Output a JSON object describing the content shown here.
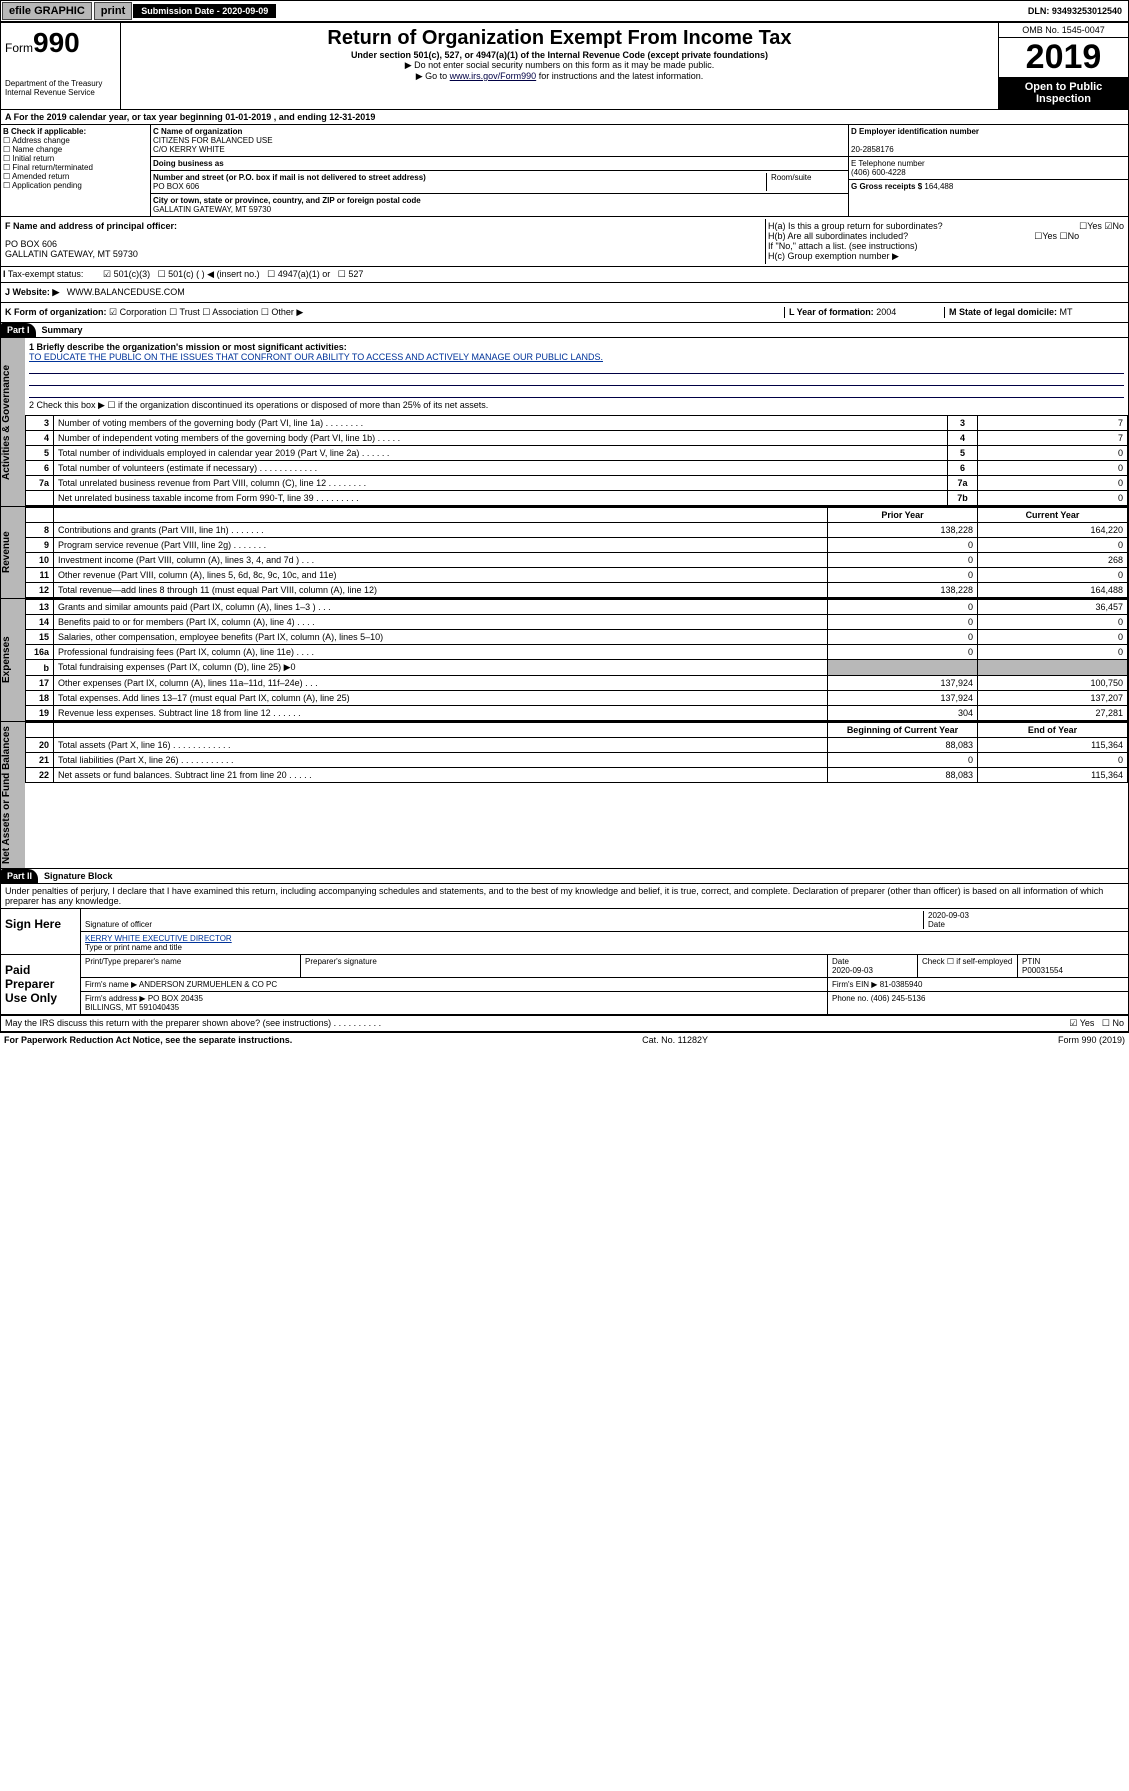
{
  "topbar": {
    "efile": "efile GRAPHIC",
    "print": "print",
    "sub_label": "Submission Date - 2020-09-09",
    "dln": "DLN: 93493253012540"
  },
  "header": {
    "form_prefix": "Form",
    "form_num": "990",
    "dept": "Department of the Treasury\nInternal Revenue Service",
    "title": "Return of Organization Exempt From Income Tax",
    "subtitle": "Under section 501(c), 527, or 4947(a)(1) of the Internal Revenue Code (except private foundations)",
    "note1": "▶ Do not enter social security numbers on this form as it may be made public.",
    "note2_pre": "▶ Go to ",
    "note2_link": "www.irs.gov/Form990",
    "note2_post": " for instructions and the latest information.",
    "omb": "OMB No. 1545-0047",
    "year": "2019",
    "inspect": "Open to Public Inspection"
  },
  "period": "A For the 2019 calendar year, or tax year beginning 01-01-2019   , and ending 12-31-2019",
  "section_b": {
    "label": "B Check if applicable:",
    "opts": [
      "Address change",
      "Name change",
      "Initial return",
      "Final return/terminated",
      "Amended return",
      "Application pending"
    ]
  },
  "section_c": {
    "name_label": "C Name of organization",
    "name": "CITIZENS FOR BALANCED USE",
    "care_of": "C/O KERRY WHITE",
    "dba_label": "Doing business as",
    "addr_label": "Number and street (or P.O. box if mail is not delivered to street address)",
    "room_label": "Room/suite",
    "addr": "PO BOX 606",
    "city_label": "City or town, state or province, country, and ZIP or foreign postal code",
    "city": "GALLATIN GATEWAY, MT  59730"
  },
  "section_d": {
    "ein_label": "D Employer identification number",
    "ein": "20-2858176",
    "phone_label": "E Telephone number",
    "phone": "(406) 600-4228",
    "gross_label": "G Gross receipts $",
    "gross": "164,488"
  },
  "section_f": {
    "label": "F Name and address of principal officer:",
    "addr1": "PO BOX 606",
    "addr2": "GALLATIN GATEWAY, MT  59730"
  },
  "section_h": {
    "ha": "H(a)  Is this a group return for subordinates?",
    "hb": "H(b)  Are all subordinates included?",
    "hb_note": "If \"No,\" attach a list. (see instructions)",
    "hc": "H(c)  Group exemption number ▶",
    "yes": "Yes",
    "no": "No"
  },
  "tax_status": {
    "label": "Tax-exempt status:",
    "o1": "501(c)(3)",
    "o2": "501(c) (   ) ◀ (insert no.)",
    "o3": "4947(a)(1) or",
    "o4": "527"
  },
  "website": {
    "label": "J   Website: ▶",
    "val": "WWW.BALANCEDUSE.COM"
  },
  "korg": {
    "label": "K Form of organization:",
    "corp": "Corporation",
    "trust": "Trust",
    "assoc": "Association",
    "other": "Other ▶",
    "l_label": "L Year of formation:",
    "l_val": "2004",
    "m_label": "M State of legal domicile:",
    "m_val": "MT"
  },
  "part1": {
    "tag": "Part I",
    "title": "Summary",
    "q1": "1  Briefly describe the organization's mission or most significant activities:",
    "mission": "TO EDUCATE THE PUBLIC ON THE ISSUES THAT CONFRONT OUR ABILITY TO ACCESS AND ACTIVELY MANAGE OUR PUBLIC LANDS.",
    "q2": "2  Check this box ▶ ☐ if the organization discontinued its operations or disposed of more than 25% of its net assets.",
    "rows_gov": [
      {
        "n": "3",
        "t": "Number of voting members of the governing body (Part VI, line 1a)  .   .   .   .   .   .   .   .",
        "c": "3",
        "v": "7"
      },
      {
        "n": "4",
        "t": "Number of independent voting members of the governing body (Part VI, line 1b)   .   .   .   .   .",
        "c": "4",
        "v": "7"
      },
      {
        "n": "5",
        "t": "Total number of individuals employed in calendar year 2019 (Part V, line 2a)  .   .   .   .   .   .",
        "c": "5",
        "v": "0"
      },
      {
        "n": "6",
        "t": "Total number of volunteers (estimate if necessary)   .   .   .   .   .   .   .   .   .   .   .   .",
        "c": "6",
        "v": "0"
      },
      {
        "n": "7a",
        "t": "Total unrelated business revenue from Part VIII, column (C), line 12   .   .   .   .   .   .   .   .",
        "c": "7a",
        "v": "0"
      },
      {
        "n": "",
        "t": "Net unrelated business taxable income from Form 990-T, line 39   .   .   .   .   .   .   .   .   .",
        "c": "7b",
        "v": "0"
      }
    ],
    "prior": "Prior Year",
    "current": "Current Year",
    "rows_rev": [
      {
        "n": "8",
        "t": "Contributions and grants (Part VIII, line 1h)   .   .   .   .   .   .   .",
        "p": "138,228",
        "c": "164,220"
      },
      {
        "n": "9",
        "t": "Program service revenue (Part VIII, line 2g)   .   .   .   .   .   .   .",
        "p": "0",
        "c": "0"
      },
      {
        "n": "10",
        "t": "Investment income (Part VIII, column (A), lines 3, 4, and 7d )   .   .   .",
        "p": "0",
        "c": "268"
      },
      {
        "n": "11",
        "t": "Other revenue (Part VIII, column (A), lines 5, 6d, 8c, 9c, 10c, and 11e)",
        "p": "0",
        "c": "0"
      },
      {
        "n": "12",
        "t": "Total revenue—add lines 8 through 11 (must equal Part VIII, column (A), line 12)",
        "p": "138,228",
        "c": "164,488"
      }
    ],
    "rows_exp": [
      {
        "n": "13",
        "t": "Grants and similar amounts paid (Part IX, column (A), lines 1–3 )   .   .   .",
        "p": "0",
        "c": "36,457"
      },
      {
        "n": "14",
        "t": "Benefits paid to or for members (Part IX, column (A), line 4)   .   .   .   .",
        "p": "0",
        "c": "0"
      },
      {
        "n": "15",
        "t": "Salaries, other compensation, employee benefits (Part IX, column (A), lines 5–10)",
        "p": "0",
        "c": "0"
      },
      {
        "n": "16a",
        "t": "Professional fundraising fees (Part IX, column (A), line 11e)   .   .   .   .",
        "p": "0",
        "c": "0"
      },
      {
        "n": "b",
        "t": "Total fundraising expenses (Part IX, column (D), line 25) ▶0",
        "p": "",
        "c": ""
      },
      {
        "n": "17",
        "t": "Other expenses (Part IX, column (A), lines 11a–11d, 11f–24e)   .   .   .",
        "p": "137,924",
        "c": "100,750"
      },
      {
        "n": "18",
        "t": "Total expenses. Add lines 13–17 (must equal Part IX, column (A), line 25)",
        "p": "137,924",
        "c": "137,207"
      },
      {
        "n": "19",
        "t": "Revenue less expenses. Subtract line 18 from line 12   .   .   .   .   .   .",
        "p": "304",
        "c": "27,281"
      }
    ],
    "begin": "Beginning of Current Year",
    "end": "End of Year",
    "rows_net": [
      {
        "n": "20",
        "t": "Total assets (Part X, line 16)   .   .   .   .   .   .   .   .   .   .   .   .",
        "p": "88,083",
        "c": "115,364"
      },
      {
        "n": "21",
        "t": "Total liabilities (Part X, line 26)   .   .   .   .   .   .   .   .   .   .   .",
        "p": "0",
        "c": "0"
      },
      {
        "n": "22",
        "t": "Net assets or fund balances. Subtract line 21 from line 20   .   .   .   .   .",
        "p": "88,083",
        "c": "115,364"
      }
    ],
    "sidebars": [
      "Activities & Governance",
      "Revenue",
      "Expenses",
      "Net Assets or Fund Balances"
    ]
  },
  "part2": {
    "tag": "Part II",
    "title": "Signature Block",
    "decl": "Under penalties of perjury, I declare that I have examined this return, including accompanying schedules and statements, and to the best of my knowledge and belief, it is true, correct, and complete. Declaration of preparer (other than officer) is based on all information of which preparer has any knowledge."
  },
  "sign": {
    "here": "Sign Here",
    "sig_officer": "Signature of officer",
    "date": "2020-09-03",
    "date_lbl": "Date",
    "name": "KERRY WHITE  EXECUTIVE DIRECTOR",
    "name_lbl": "Type or print name and title"
  },
  "paid": {
    "title": "Paid Preparer Use Only",
    "prep_name_lbl": "Print/Type preparer's name",
    "prep_sig_lbl": "Preparer's signature",
    "date_lbl": "Date",
    "date": "2020-09-03",
    "check_lbl": "Check ☐ if self-employed",
    "ptin_lbl": "PTIN",
    "ptin": "P00031554",
    "firm_name_lbl": "Firm's name    ▶",
    "firm_name": "ANDERSON ZURMUEHLEN & CO PC",
    "firm_ein_lbl": "Firm's EIN ▶",
    "firm_ein": "81-0385940",
    "firm_addr_lbl": "Firm's address ▶",
    "firm_addr": "PO BOX 20435",
    "firm_city": "BILLINGS, MT  591040435",
    "phone_lbl": "Phone no.",
    "phone": "(406) 245-5136"
  },
  "discuss": "May the IRS discuss this return with the preparer shown above? (see instructions)   .   .   .   .   .   .   .   .   .   .",
  "footer": {
    "left": "For Paperwork Reduction Act Notice, see the separate instructions.",
    "mid": "Cat. No. 11282Y",
    "right": "Form 990 (2019)"
  },
  "colors": {
    "link": "#003399",
    "black": "#000000",
    "gray": "#b8b8b8"
  }
}
